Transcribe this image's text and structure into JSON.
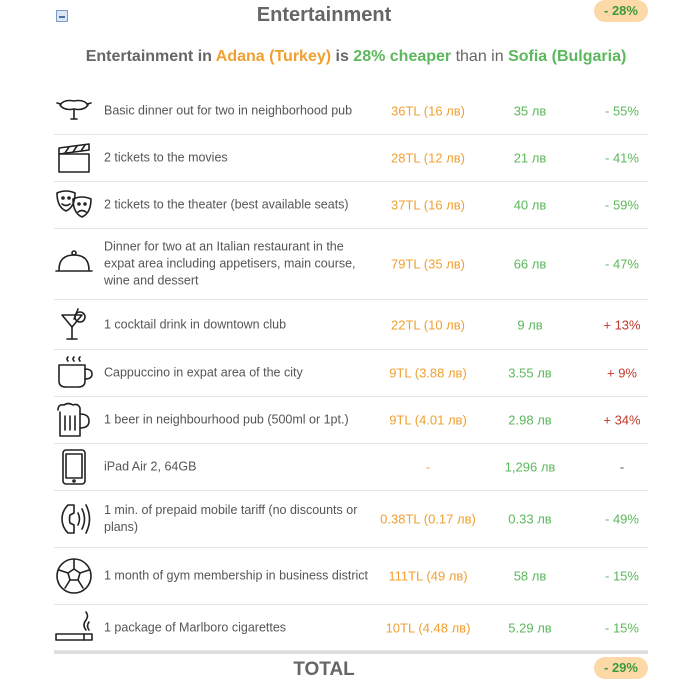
{
  "section": {
    "title": "Entertainment",
    "badge": "- 28%"
  },
  "summary": {
    "prefix": "Entertainment in ",
    "city_a": "Adana (Turkey)",
    "is": " is ",
    "percent": "28%",
    "cheaper": " cheaper",
    "than_in": " than in ",
    "city_b": "Sofia (Bulgaria)"
  },
  "rows": [
    {
      "icon": "sausage-icon",
      "label": "Basic dinner out for two in neighborhood pub",
      "price_a": "36TL (16 лв)",
      "price_b": "35 лв",
      "diff": "- 55%",
      "trend": "neg"
    },
    {
      "icon": "clapperboard-icon",
      "label": "2 tickets to the movies",
      "price_a": "28TL (12 лв)",
      "price_b": "21 лв",
      "diff": "- 41%",
      "trend": "neg"
    },
    {
      "icon": "theater-masks-icon",
      "label": "2 tickets to the theater (best available seats)",
      "price_a": "37TL (16 лв)",
      "price_b": "40 лв",
      "diff": "- 59%",
      "trend": "neg"
    },
    {
      "icon": "cloche-icon",
      "label": "Dinner for two at an Italian restaurant in the expat area including appetisers, main course, wine and dessert",
      "price_a": "79TL (35 лв)",
      "price_b": "66 лв",
      "diff": "- 47%",
      "trend": "neg"
    },
    {
      "icon": "cocktail-icon",
      "label": "1 cocktail drink in downtown club",
      "price_a": "22TL (10 лв)",
      "price_b": "9 лв",
      "diff": "+ 13%",
      "trend": "pos"
    },
    {
      "icon": "coffee-cup-icon",
      "label": "Cappuccino in expat area of the city",
      "price_a": "9TL (3.88 лв)",
      "price_b": "3.55 лв",
      "diff": "+ 9%",
      "trend": "pos"
    },
    {
      "icon": "beer-mug-icon",
      "label": "1 beer in neighbourhood pub (500ml or 1pt.)",
      "price_a": "9TL (4.01 лв)",
      "price_b": "2.98 лв",
      "diff": "+ 34%",
      "trend": "pos"
    },
    {
      "icon": "tablet-icon",
      "label": "iPad Air 2, 64GB",
      "price_a": "-",
      "price_b": "1,296 лв",
      "diff": "-",
      "trend": "neutral"
    },
    {
      "icon": "phone-icon",
      "label": "1 min. of prepaid mobile tariff (no discounts or plans)",
      "price_a": "0.38TL (0.17 лв)",
      "price_b": "0.33 лв",
      "diff": "- 49%",
      "trend": "neg"
    },
    {
      "icon": "soccer-ball-icon",
      "label": "1 month of gym membership in business district",
      "price_a": "111TL (49 лв)",
      "price_b": "58 лв",
      "diff": "- 15%",
      "trend": "neg"
    },
    {
      "icon": "cigarette-icon",
      "label": "1 package of Marlboro cigarettes",
      "price_a": "10TL (4.48 лв)",
      "price_b": "5.29 лв",
      "diff": "- 15%",
      "trend": "neg"
    }
  ],
  "total": {
    "label": "TOTAL",
    "badge": "- 29%"
  },
  "colors": {
    "city_a": "#f0a030",
    "city_b": "#5cb85c",
    "increase": "#c0392b",
    "badge_bg": "#fcd9a6"
  }
}
